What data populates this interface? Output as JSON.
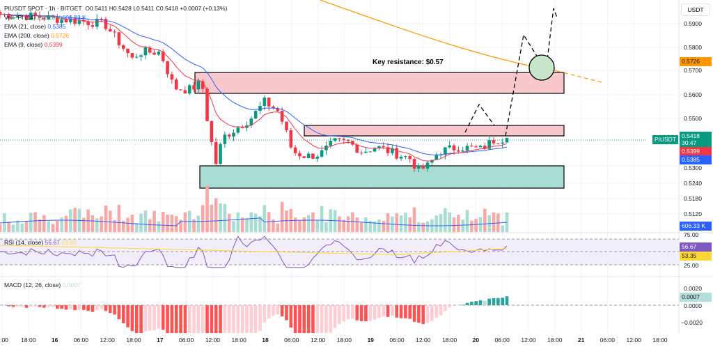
{
  "header": {
    "symbol_line": "PIUSDT SPOT · 1h · BITGET",
    "open": "O0.5411",
    "high": "H0.5428",
    "low": "L0.5411",
    "close": "C0.5418",
    "change": "+0.0007 (+0.13%)"
  },
  "indicators": {
    "vol": {
      "label": "Vol · PI (14)",
      "v1": "217.28 K",
      "v2": "606.33 K"
    },
    "ema21": {
      "label": "EMA (21, close)",
      "value": "0.5385"
    },
    "ema200": {
      "label": "EMA (200, close)",
      "value": "0.5726"
    },
    "ema9": {
      "label": "EMA (9, close)",
      "value": "0.5399"
    },
    "rsi": {
      "label": "RSI (14, close)",
      "value": "56.67",
      "ma": "53.35"
    },
    "macd": {
      "label": "MACD (12, 26, close)",
      "value": "0.0007"
    }
  },
  "currency": "USDT",
  "annotation": "Key resistance: $0.57",
  "price_axis": [
    "0.5900",
    "0.5800",
    "0.5700",
    "0.5600",
    "0.5500",
    "0.5300",
    "0.5240",
    "0.5180",
    "0.5120"
  ],
  "rsi_axis": [
    "75.00",
    "25.00"
  ],
  "macd_axis": [
    "0.0020",
    "0.0000",
    "−0.0020"
  ],
  "tags": {
    "ema200": "0.5726",
    "symbol": "PIUSDT",
    "price": "0.5418",
    "countdown": "30:47",
    "ema9": "0.5399",
    "ema21": "0.5385",
    "vol": "606.33 K",
    "rsi": "56.67",
    "rsi_ma": "53.35",
    "macd": "0.0007"
  },
  "time_axis": [
    ":00",
    "18:00",
    "16",
    "06:00",
    "12:00",
    "18:00",
    "17",
    "06:00",
    "12:00",
    "18:00",
    "18",
    "06:00",
    "12:00",
    "18:00",
    "19",
    "06:00",
    "12:00",
    "18:00",
    "20",
    "06:00",
    "12:00",
    "18:00",
    "21",
    "06:00",
    "12:00",
    "18:00"
  ],
  "colors": {
    "up": "#089981",
    "down": "#f23645",
    "ema21": "#2962ff",
    "ema200": "#ff9800",
    "ema9": "#f23645",
    "rsi": "#7e57c2",
    "rsi_ma": "#fdd835",
    "resistance": "#f8c8cc",
    "support": "#a8ddd4"
  },
  "price_path": [
    [
      0,
      0.594
    ],
    [
      50,
      0.593
    ],
    [
      150,
      0.59
    ],
    [
      190,
      0.575
    ],
    [
      200,
      0.578
    ],
    [
      230,
      0.578
    ],
    [
      250,
      0.563
    ],
    [
      270,
      0.562
    ],
    [
      290,
      0.565
    ],
    [
      300,
      0.545
    ],
    [
      310,
      0.531
    ],
    [
      320,
      0.542
    ],
    [
      340,
      0.546
    ],
    [
      360,
      0.55
    ],
    [
      380,
      0.557
    ],
    [
      400,
      0.553
    ],
    [
      410,
      0.545
    ],
    [
      420,
      0.536
    ],
    [
      440,
      0.534
    ],
    [
      460,
      0.535
    ],
    [
      480,
      0.54
    ],
    [
      500,
      0.54
    ],
    [
      520,
      0.536
    ],
    [
      540,
      0.538
    ],
    [
      560,
      0.536
    ],
    [
      590,
      0.533
    ],
    [
      600,
      0.528
    ],
    [
      615,
      0.53
    ],
    [
      630,
      0.536
    ],
    [
      660,
      0.538
    ],
    [
      690,
      0.537
    ],
    [
      710,
      0.541
    ],
    [
      728,
      0.5418
    ]
  ]
}
